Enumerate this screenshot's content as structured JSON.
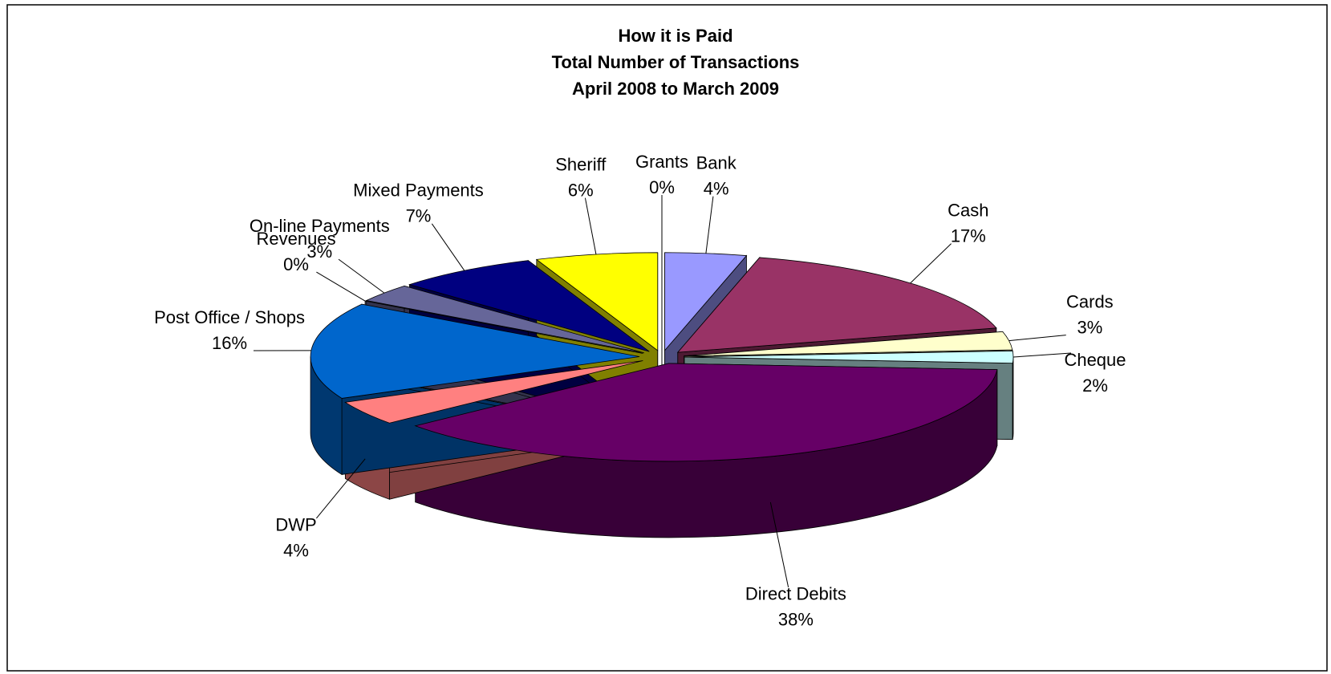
{
  "chart_data": {
    "type": "pie",
    "title": "How it is Paid",
    "subtitle": [
      "Total Number of Transactions",
      "April 2008 to March 2009"
    ],
    "categories": [
      "Grants",
      "Bank",
      "Cash",
      "Cards",
      "Cheque",
      "Direct Debits",
      "DWP",
      "Post Office / Shops",
      "Revenues",
      "On-line Payments",
      "Mixed Payments",
      "Sheriff"
    ],
    "values": [
      0,
      4,
      17,
      3,
      2,
      38,
      4,
      16,
      0,
      3,
      7,
      6
    ],
    "value_labels": [
      "0%",
      "4%",
      "17%",
      "3%",
      "2%",
      "38%",
      "4%",
      "16%",
      "0%",
      "3%",
      "7%",
      "6%"
    ],
    "colors": [
      "#ffffff",
      "#9999ff",
      "#993366",
      "#ffffcc",
      "#ccffff",
      "#660066",
      "#ff8080",
      "#0066cc",
      "#ccccff",
      "#666699",
      "#000080",
      "#ffff00"
    ]
  }
}
